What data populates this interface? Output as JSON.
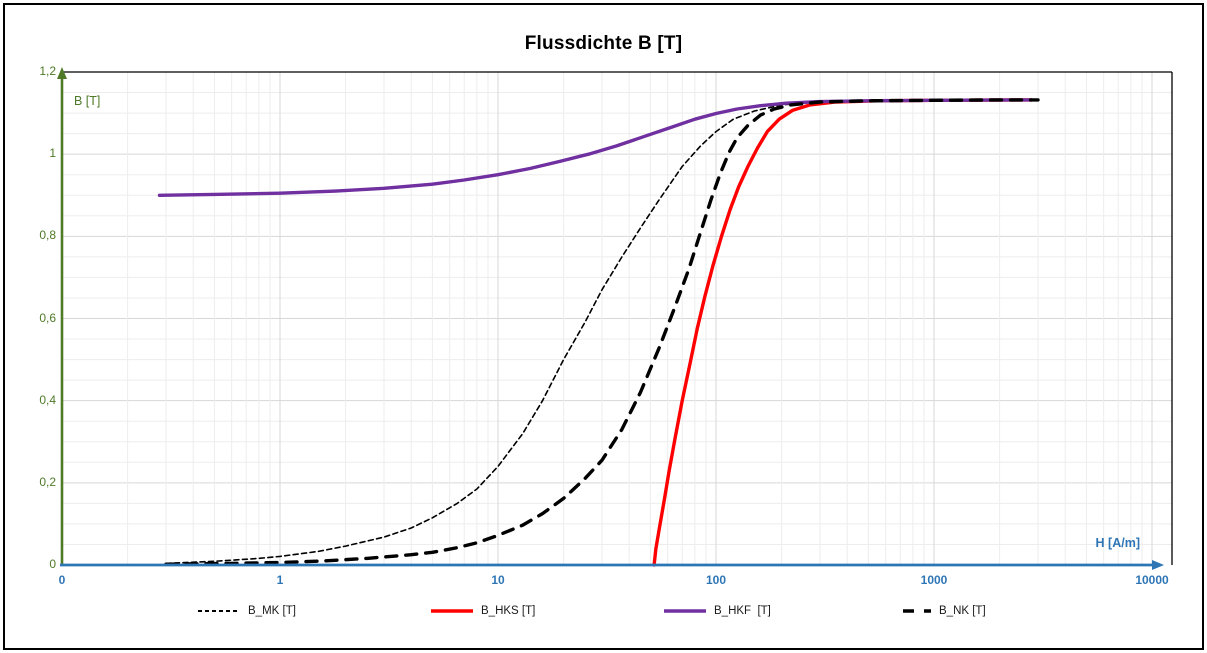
{
  "chart_data": {
    "type": "line",
    "title": "Flussdichte B [T]",
    "x_axis_label": "H [A/m]",
    "y_axis_label": "B [T]",
    "x_scale": "log",
    "x_range": [
      0.1,
      10000
    ],
    "y_range": [
      0,
      1.2
    ],
    "grid": {
      "minor_color": "#EDEDED",
      "major_color": "#D7D7D7",
      "y_minor_step": 0.05,
      "y_major_step": 0.2
    },
    "axis_colors": {
      "x": "#2E75B6",
      "y": "#4F7A28"
    },
    "x_ticks": [
      {
        "v": 0.1,
        "label": "0"
      },
      {
        "v": 1,
        "label": "1"
      },
      {
        "v": 10,
        "label": "10"
      },
      {
        "v": 100,
        "label": "100"
      },
      {
        "v": 1000,
        "label": "1000"
      },
      {
        "v": 10000,
        "label": "10000"
      }
    ],
    "y_ticks": [
      {
        "v": 0,
        "label": "0"
      },
      {
        "v": 0.2,
        "label": "0,2"
      },
      {
        "v": 0.4,
        "label": "0,4"
      },
      {
        "v": 0.6,
        "label": "0,6"
      },
      {
        "v": 0.8,
        "label": "0,8"
      },
      {
        "v": 1,
        "label": "1"
      },
      {
        "v": 1.2,
        "label": "1,2"
      }
    ],
    "series": [
      {
        "name": "B_MK [T]",
        "color": "#000000",
        "width": 1.6,
        "dash": "5 3.5",
        "legend_dash": "4 3",
        "points": [
          [
            0.3,
            0.004
          ],
          [
            0.5,
            0.009
          ],
          [
            0.8,
            0.016
          ],
          [
            1,
            0.021
          ],
          [
            1.5,
            0.033
          ],
          [
            2,
            0.046
          ],
          [
            3,
            0.068
          ],
          [
            4,
            0.09
          ],
          [
            5,
            0.115
          ],
          [
            6.5,
            0.15
          ],
          [
            8,
            0.185
          ],
          [
            10,
            0.24
          ],
          [
            13,
            0.32
          ],
          [
            16,
            0.4
          ],
          [
            20,
            0.5
          ],
          [
            25,
            0.59
          ],
          [
            30,
            0.67
          ],
          [
            37,
            0.75
          ],
          [
            45,
            0.82
          ],
          [
            55,
            0.89
          ],
          [
            70,
            0.97
          ],
          [
            85,
            1.02
          ],
          [
            100,
            1.055
          ],
          [
            120,
            1.085
          ],
          [
            150,
            1.105
          ],
          [
            200,
            1.12
          ],
          [
            300,
            1.127
          ],
          [
            500,
            1.13
          ],
          [
            1000,
            1.131
          ],
          [
            2000,
            1.132
          ],
          [
            3000,
            1.132
          ]
        ]
      },
      {
        "name": "B_HKS [T]",
        "color": "#FF0000",
        "width": 3.4,
        "dash": "",
        "legend_dash": "",
        "points": [
          [
            52,
            0
          ],
          [
            53,
            0.04
          ],
          [
            55,
            0.09
          ],
          [
            58,
            0.16
          ],
          [
            61,
            0.23
          ],
          [
            65,
            0.31
          ],
          [
            70,
            0.4
          ],
          [
            76,
            0.49
          ],
          [
            82,
            0.575
          ],
          [
            89,
            0.655
          ],
          [
            97,
            0.73
          ],
          [
            106,
            0.8
          ],
          [
            116,
            0.865
          ],
          [
            127,
            0.92
          ],
          [
            140,
            0.97
          ],
          [
            155,
            1.015
          ],
          [
            172,
            1.055
          ],
          [
            195,
            1.085
          ],
          [
            225,
            1.107
          ],
          [
            270,
            1.12
          ],
          [
            350,
            1.127
          ],
          [
            550,
            1.13
          ],
          [
            1000,
            1.131
          ],
          [
            2800,
            1.132
          ]
        ]
      },
      {
        "name": "B_HKF  [T]",
        "color": "#7030A0",
        "width": 3.4,
        "dash": "",
        "legend_dash": "",
        "points": [
          [
            0.28,
            0.9
          ],
          [
            0.5,
            0.902
          ],
          [
            1,
            0.905
          ],
          [
            1.8,
            0.91
          ],
          [
            3,
            0.917
          ],
          [
            5,
            0.927
          ],
          [
            7,
            0.937
          ],
          [
            10,
            0.95
          ],
          [
            14,
            0.965
          ],
          [
            19,
            0.982
          ],
          [
            26,
            1.0
          ],
          [
            35,
            1.02
          ],
          [
            48,
            1.045
          ],
          [
            62,
            1.065
          ],
          [
            80,
            1.085
          ],
          [
            100,
            1.099
          ],
          [
            125,
            1.11
          ],
          [
            160,
            1.118
          ],
          [
            210,
            1.124
          ],
          [
            300,
            1.128
          ],
          [
            500,
            1.13
          ],
          [
            1000,
            1.131
          ],
          [
            2800,
            1.132
          ]
        ]
      },
      {
        "name": "B_NK [T]",
        "color": "#000000",
        "width": 3.4,
        "dash": "11 9",
        "legend_dash": "11 10",
        "points": [
          [
            0.3,
            0.002
          ],
          [
            0.6,
            0.004
          ],
          [
            1,
            0.006
          ],
          [
            1.6,
            0.01
          ],
          [
            2.5,
            0.016
          ],
          [
            4,
            0.025
          ],
          [
            5,
            0.031
          ],
          [
            6.5,
            0.042
          ],
          [
            8,
            0.054
          ],
          [
            10,
            0.072
          ],
          [
            13,
            0.097
          ],
          [
            16,
            0.125
          ],
          [
            20,
            0.162
          ],
          [
            25,
            0.21
          ],
          [
            30,
            0.255
          ],
          [
            37,
            0.33
          ],
          [
            45,
            0.42
          ],
          [
            55,
            0.53
          ],
          [
            65,
            0.63
          ],
          [
            75,
            0.72
          ],
          [
            85,
            0.81
          ],
          [
            95,
            0.89
          ],
          [
            105,
            0.955
          ],
          [
            115,
            1.005
          ],
          [
            125,
            1.04
          ],
          [
            140,
            1.07
          ],
          [
            160,
            1.095
          ],
          [
            185,
            1.11
          ],
          [
            220,
            1.12
          ],
          [
            300,
            1.127
          ],
          [
            500,
            1.13
          ],
          [
            1000,
            1.131
          ],
          [
            2000,
            1.132
          ],
          [
            3000,
            1.132
          ]
        ]
      }
    ]
  }
}
